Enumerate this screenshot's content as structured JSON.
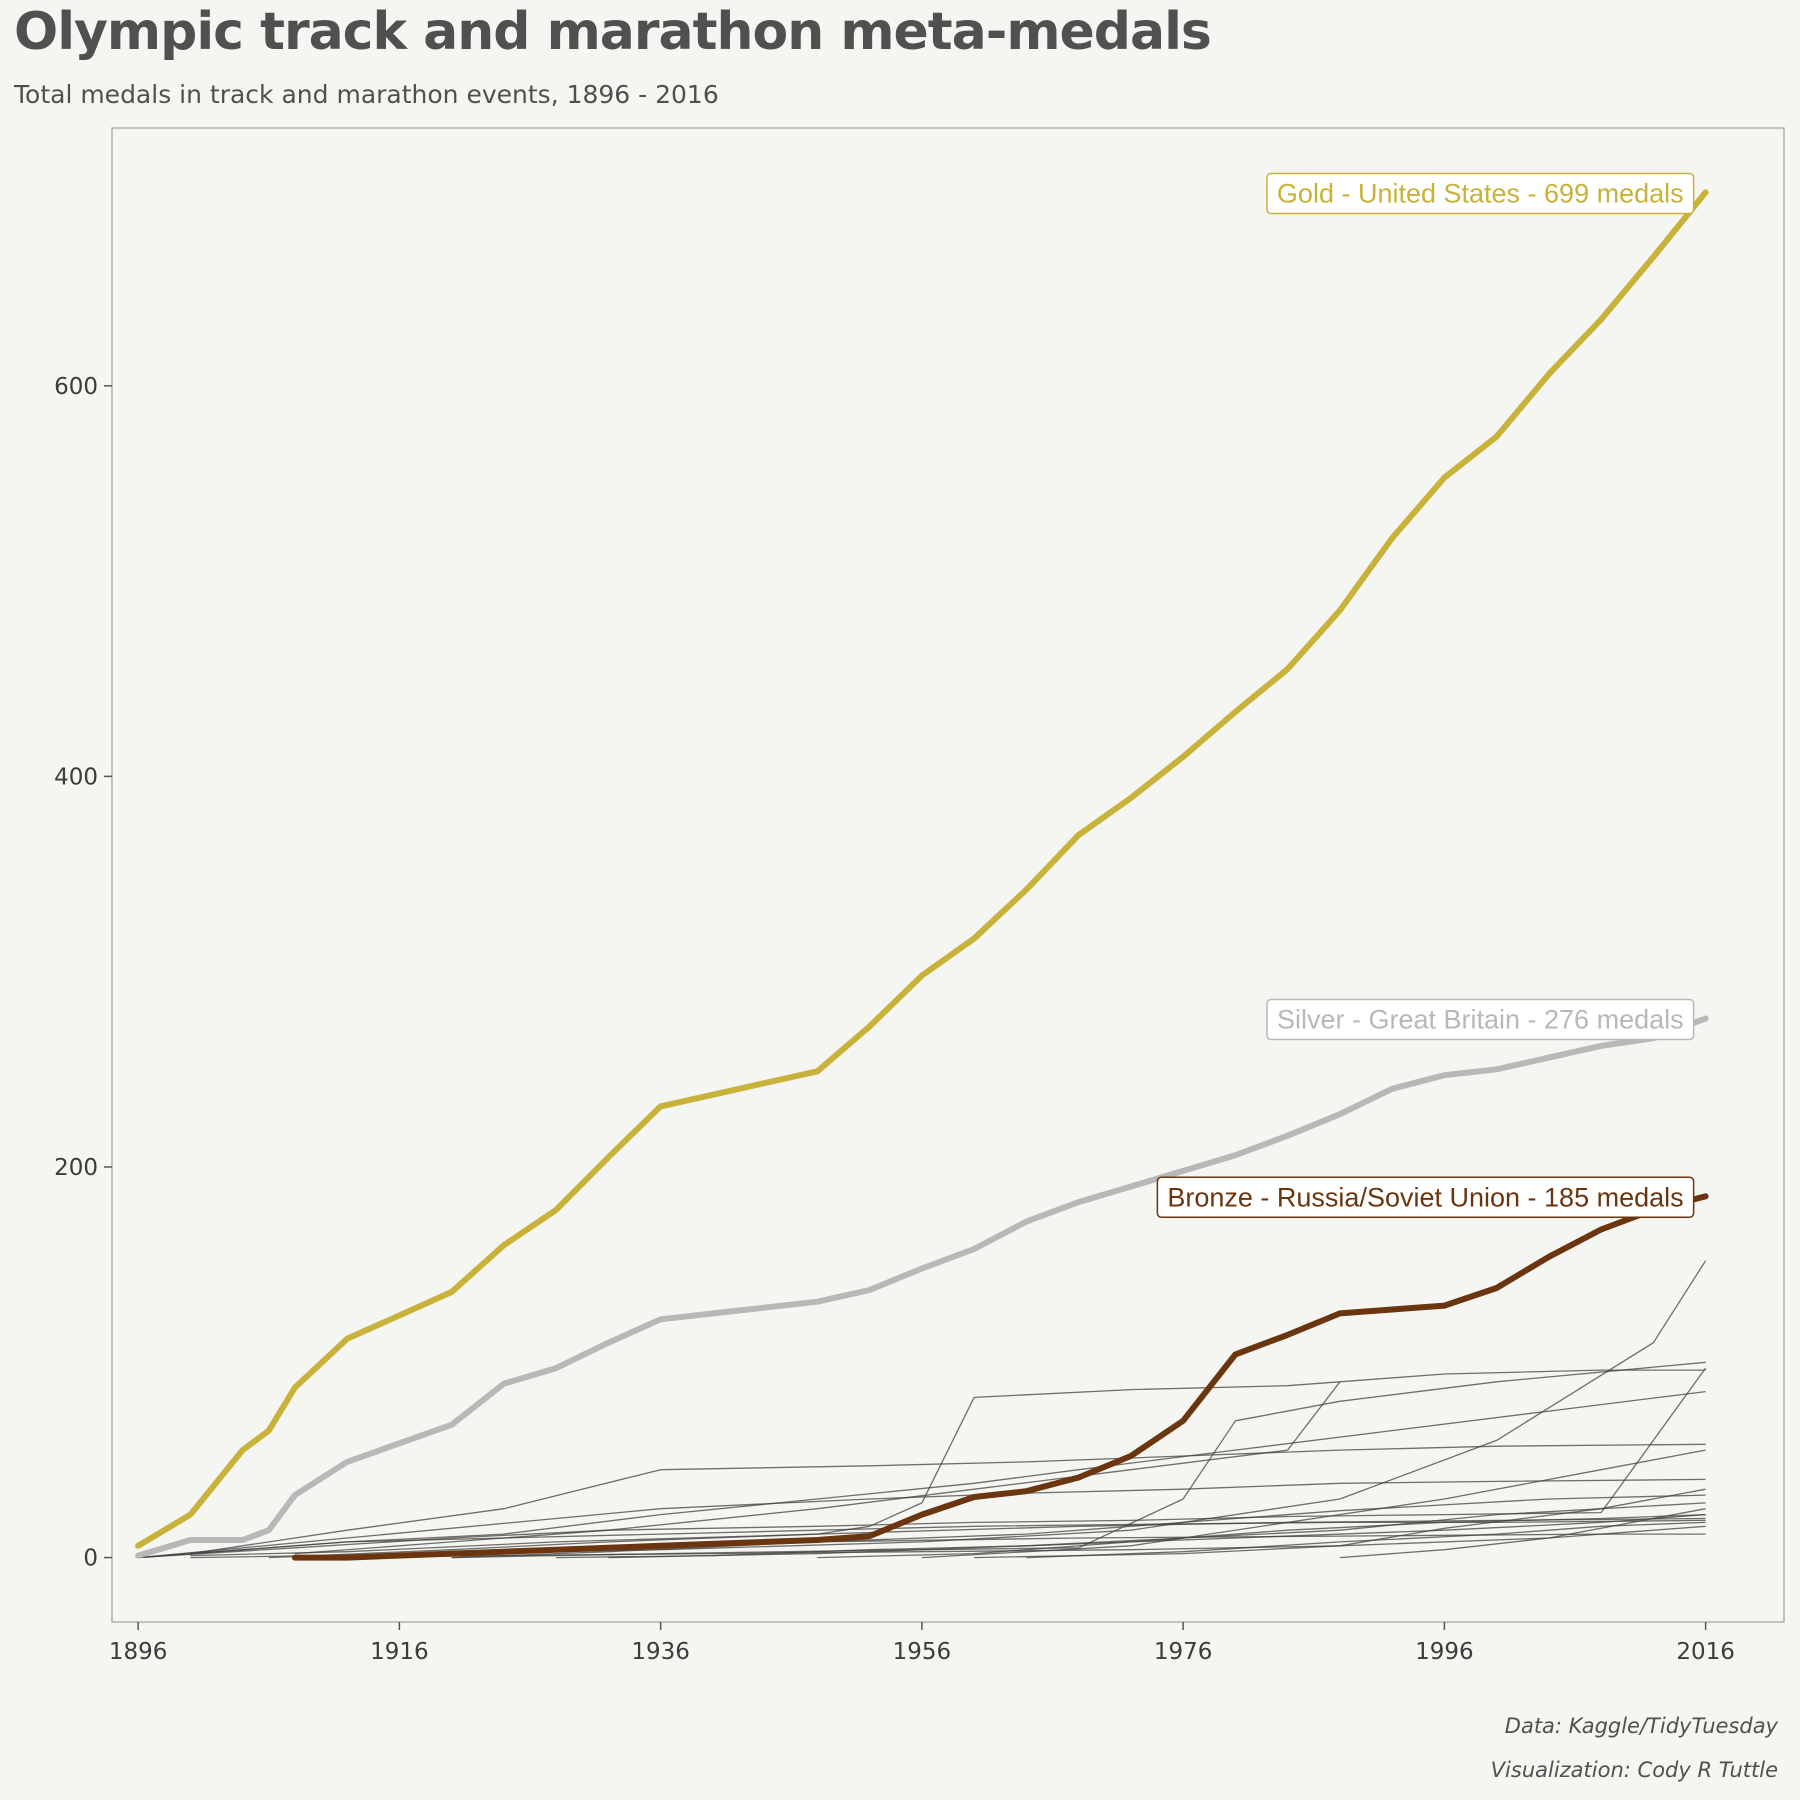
{
  "title": "Olympic track and marathon meta-medals",
  "subtitle": "Total medals in track and marathon events, 1896 - 2016",
  "caption": {
    "source": "Data: Kaggle/TidyTuesday",
    "credit": "Visualization: Cody R Tuttle"
  },
  "colors": {
    "gold": "#c9b23a",
    "silver": "#b8b8b8",
    "bronze": "#6b3510",
    "other": "#404040",
    "background": "#f5f5f1",
    "panel_border": "#a0a0a0"
  },
  "chart_data": {
    "type": "line",
    "xlabel": "",
    "ylabel": "",
    "xlim": [
      1894,
      2022
    ],
    "ylim": [
      -33,
      732
    ],
    "x_ticks": [
      "1896",
      "1916",
      "1936",
      "1956",
      "1976",
      "1996",
      "2016"
    ],
    "y_ticks": [
      "0",
      "200",
      "400",
      "600"
    ],
    "grid": false,
    "highlighted_series": [
      {
        "label": "Gold - United States - 699  medals",
        "medal": "gold",
        "x": [
          1896,
          1900,
          1904,
          1906,
          1908,
          1912,
          1920,
          1924,
          1928,
          1932,
          1936,
          1948,
          1952,
          1956,
          1960,
          1964,
          1968,
          1972,
          1976,
          1980,
          1984,
          1988,
          1992,
          1996,
          2000,
          2004,
          2008,
          2012,
          2016
        ],
        "y": [
          6,
          22,
          55,
          65,
          87,
          112,
          136,
          160,
          178,
          205,
          231,
          249,
          272,
          298,
          317,
          342,
          370,
          389,
          410,
          433,
          455,
          485,
          522,
          553,
          574,
          606,
          634,
          666,
          699
        ]
      },
      {
        "label": "Silver - Great Britain - 276  medals",
        "medal": "silver",
        "x": [
          1896,
          1900,
          1904,
          1906,
          1908,
          1912,
          1920,
          1924,
          1928,
          1932,
          1936,
          1948,
          1952,
          1956,
          1960,
          1964,
          1968,
          1972,
          1976,
          1980,
          1984,
          1988,
          1992,
          1996,
          2000,
          2004,
          2008,
          2012,
          2016
        ],
        "y": [
          1,
          9,
          9,
          14,
          32,
          49,
          68,
          89,
          97,
          110,
          122,
          131,
          137,
          148,
          158,
          172,
          182,
          190,
          198,
          206,
          216,
          227,
          240,
          247,
          250,
          256,
          262,
          266,
          276
        ]
      },
      {
        "label": "Bronze - Russia/Soviet Union - 185  medals",
        "medal": "bronze",
        "x": [
          1908,
          1912,
          1920,
          1924,
          1928,
          1932,
          1936,
          1948,
          1952,
          1956,
          1960,
          1964,
          1968,
          1972,
          1976,
          1980,
          1984,
          1988,
          1992,
          1996,
          2000,
          2004,
          2008,
          2012,
          2016
        ],
        "y": [
          0,
          0,
          2,
          3,
          4,
          5,
          6,
          9,
          11,
          22,
          31,
          34,
          41,
          52,
          70,
          104,
          114,
          125,
          127,
          129,
          138,
          154,
          168,
          178,
          185
        ]
      }
    ],
    "other_series": [
      {
        "x": [
          1896,
          1908,
          1920,
          1932,
          1948,
          1960,
          1972,
          1984,
          1996,
          2008,
          2016
        ],
        "y": [
          0,
          5,
          10,
          14,
          16,
          18,
          19,
          21,
          22,
          23,
          97
        ]
      },
      {
        "x": [
          1900,
          1912,
          1924,
          1936,
          1952,
          1964,
          1976,
          1988,
          2000,
          2016
        ],
        "y": [
          2,
          14,
          25,
          45,
          47,
          49,
          52,
          55,
          57,
          58
        ]
      },
      {
        "x": [
          1896,
          1912,
          1924,
          1936,
          1948,
          1960,
          1968,
          1980,
          1992,
          2004,
          2016
        ],
        "y": [
          0,
          8,
          12,
          22,
          30,
          38,
          45,
          55,
          65,
          75,
          85
        ]
      },
      {
        "x": [
          1906,
          1920,
          1932,
          1948,
          1952,
          1956,
          1960,
          1972,
          1984,
          1996,
          2008,
          2016
        ],
        "y": [
          0,
          4,
          8,
          12,
          16,
          28,
          82,
          86,
          88,
          94,
          96,
          96
        ]
      },
      {
        "x": [
          1908,
          1920,
          1932,
          1948,
          1960,
          1972,
          1984,
          1988
        ],
        "y": [
          2,
          8,
          14,
          25,
          35,
          45,
          55,
          90
        ]
      },
      {
        "x": [
          1896,
          1912,
          1928,
          1936,
          1952,
          1964,
          1976,
          1988,
          2000,
          2016
        ],
        "y": [
          0,
          10,
          20,
          25,
          30,
          33,
          35,
          38,
          39,
          40
        ]
      },
      {
        "x": [
          1900,
          1920,
          1936,
          1956,
          1972,
          1988,
          2000,
          2012,
          2016
        ],
        "y": [
          0,
          2,
          4,
          8,
          14,
          30,
          60,
          110,
          152
        ]
      },
      {
        "x": [
          1920,
          1936,
          1956,
          1968,
          1976,
          1980,
          1988,
          2000,
          2016
        ],
        "y": [
          0,
          2,
          4,
          5,
          30,
          70,
          80,
          90,
          100
        ]
      },
      {
        "x": [
          1900,
          1912,
          1928,
          1948,
          1968,
          1984,
          2000,
          2016
        ],
        "y": [
          1,
          3,
          8,
          12,
          16,
          18,
          19,
          20
        ]
      },
      {
        "x": [
          1948,
          1960,
          1972,
          1984,
          1996,
          2008,
          2016
        ],
        "y": [
          0,
          2,
          8,
          14,
          18,
          20,
          22
        ]
      },
      {
        "x": [
          1956,
          1972,
          1984,
          1996,
          2008,
          2016
        ],
        "y": [
          0,
          6,
          18,
          30,
          45,
          55
        ]
      },
      {
        "x": [
          1960,
          1976,
          1988,
          1996,
          2008,
          2016
        ],
        "y": [
          0,
          2,
          6,
          15,
          25,
          35
        ]
      },
      {
        "x": [
          1912,
          1928,
          1948,
          1968,
          1988,
          2008,
          2016
        ],
        "y": [
          0,
          4,
          8,
          10,
          11,
          12,
          12
        ]
      },
      {
        "x": [
          1896,
          1904,
          1912,
          1924,
          1936,
          1948,
          1960,
          1972,
          1988,
          2000,
          2016
        ],
        "y": [
          0,
          4,
          8,
          10,
          12,
          14,
          16,
          17,
          18,
          18,
          19
        ]
      },
      {
        "x": [
          1920,
          1932,
          1948,
          1964,
          1976,
          1988,
          2004,
          2016
        ],
        "y": [
          0,
          3,
          8,
          12,
          18,
          24,
          30,
          32
        ]
      },
      {
        "x": [
          1928,
          1940,
          1952,
          1964,
          1976,
          1988,
          2000,
          2016
        ],
        "y": [
          0,
          1,
          4,
          6,
          10,
          14,
          22,
          28
        ]
      },
      {
        "x": [
          1964,
          1976,
          1988,
          2000,
          2008,
          2016
        ],
        "y": [
          0,
          3,
          8,
          12,
          16,
          18
        ]
      },
      {
        "x": [
          1908,
          1924,
          1940,
          1956,
          1972,
          1988,
          2004,
          2016
        ],
        "y": [
          0,
          1,
          2,
          3,
          4,
          6,
          10,
          16
        ]
      },
      {
        "x": [
          1932,
          1948,
          1964,
          1980,
          1996,
          2008,
          2016
        ],
        "y": [
          0,
          2,
          6,
          10,
          14,
          18,
          22
        ]
      },
      {
        "x": [
          1988,
          1996,
          2004,
          2016
        ],
        "y": [
          0,
          4,
          10,
          25
        ]
      }
    ]
  }
}
